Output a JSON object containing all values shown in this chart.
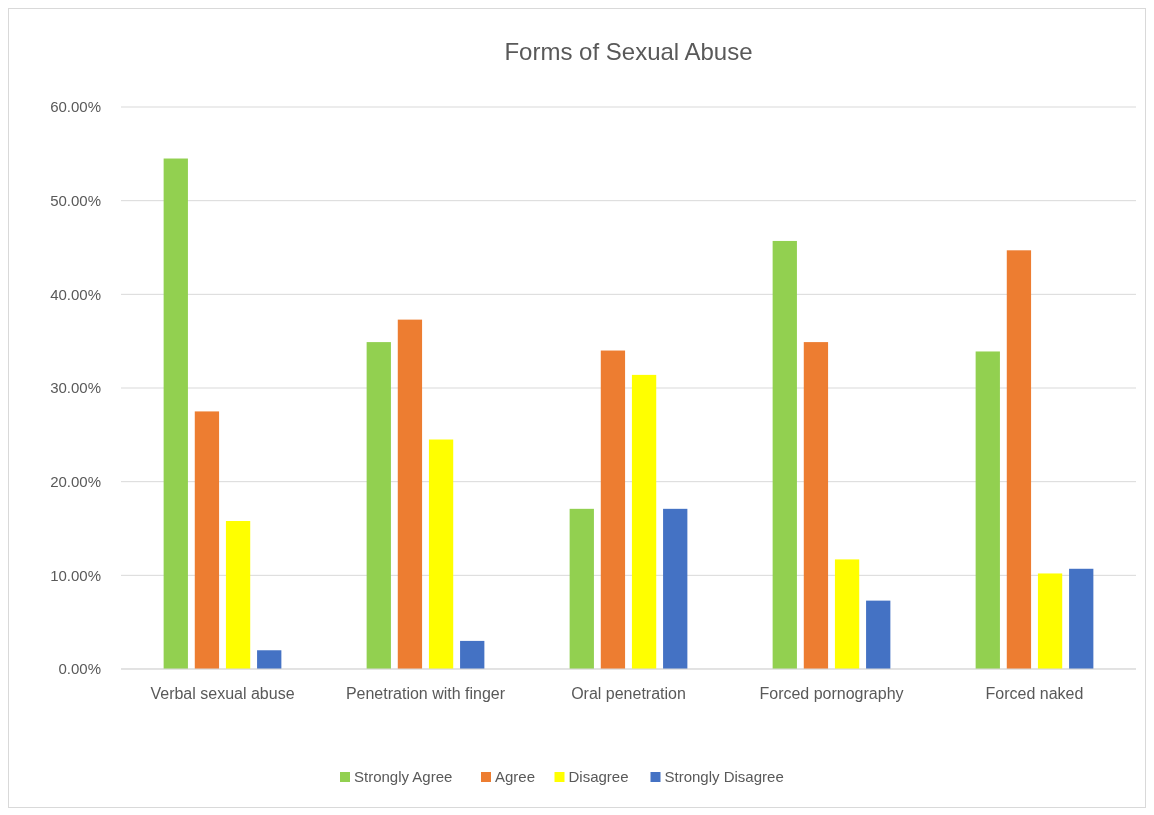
{
  "chart_data": {
    "type": "bar",
    "title": "Forms of Sexual Abuse",
    "categories": [
      "Verbal sexual abuse",
      "Penetration with finger",
      "Oral penetration",
      "Forced pornography",
      "Forced naked"
    ],
    "series": [
      {
        "name": "Strongly Agree",
        "color": "#92d050",
        "values": [
          54.5,
          34.9,
          17.1,
          45.7,
          33.9
        ]
      },
      {
        "name": "Agree",
        "color": "#ed7d31",
        "values": [
          27.5,
          37.3,
          34.0,
          34.9,
          44.7
        ]
      },
      {
        "name": "Disagree",
        "color": "#ffff00",
        "values": [
          15.8,
          24.5,
          31.4,
          11.7,
          10.2
        ]
      },
      {
        "name": "Strongly Disagree",
        "color": "#4472c4",
        "values": [
          2.0,
          3.0,
          17.1,
          7.3,
          10.7
        ]
      }
    ],
    "ylim": [
      0,
      60
    ],
    "yticks": [
      {
        "value": 0,
        "label": "0.00%"
      },
      {
        "value": 10,
        "label": "10.00%"
      },
      {
        "value": 20,
        "label": "20.00%"
      },
      {
        "value": 30,
        "label": "30.00%"
      },
      {
        "value": 40,
        "label": "40.00%"
      },
      {
        "value": 50,
        "label": "50.00%"
      },
      {
        "value": 60,
        "label": "60.00%"
      }
    ],
    "grid": "y",
    "legend": "bottom"
  }
}
